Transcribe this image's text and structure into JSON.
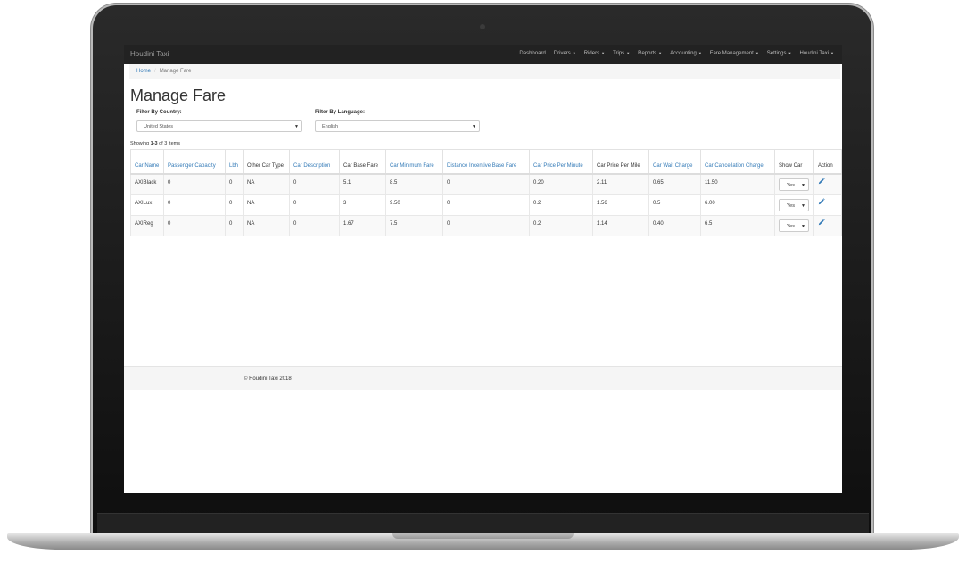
{
  "app": {
    "brand": "Houdini Taxi"
  },
  "nav": {
    "items": [
      {
        "label": "Dashboard",
        "dropdown": false
      },
      {
        "label": "Drivers",
        "dropdown": true
      },
      {
        "label": "Riders",
        "dropdown": true
      },
      {
        "label": "Trips",
        "dropdown": true
      },
      {
        "label": "Reports",
        "dropdown": true
      },
      {
        "label": "Accounting",
        "dropdown": true
      },
      {
        "label": "Fare Management",
        "dropdown": true
      },
      {
        "label": "Settings",
        "dropdown": true
      },
      {
        "label": "Houdini Taxi",
        "dropdown": true
      }
    ]
  },
  "breadcrumb": {
    "home": "Home",
    "separator": "/",
    "current": "Manage Fare"
  },
  "page": {
    "title": "Manage Fare"
  },
  "filters": {
    "country_label": "Filter By Country:",
    "country_value": "United States",
    "language_label": "Filter By Language:",
    "language_value": "English"
  },
  "showing": {
    "prefix": "Showing ",
    "range": "1-3",
    "suffix": " of 3 items"
  },
  "table": {
    "columns": [
      {
        "label": "Car Name",
        "link": true
      },
      {
        "label": "Passenger Capacity",
        "link": true
      },
      {
        "label": "Lbh",
        "link": true
      },
      {
        "label": "Other Car Type",
        "link": false
      },
      {
        "label": "Car Description",
        "link": true
      },
      {
        "label": "Car Base Fare",
        "link": false
      },
      {
        "label": "Car Minimum Fare",
        "link": true
      },
      {
        "label": "Distance Incentive Base Fare",
        "link": true
      },
      {
        "label": "Car Price Per Minute",
        "link": true
      },
      {
        "label": "Car Price Per Mile",
        "link": false
      },
      {
        "label": "Car Wait Charge",
        "link": true
      },
      {
        "label": "Car Cancellation Charge",
        "link": true
      },
      {
        "label": "Show Car",
        "link": false
      },
      {
        "label": "Action",
        "link": false
      }
    ],
    "rows": [
      {
        "cells": [
          "AXIBlack",
          "0",
          "0",
          "NA",
          "0",
          "5.1",
          "8.5",
          "0",
          "0.20",
          "2.11",
          "0.65",
          "11.50"
        ],
        "show_car": "Yes"
      },
      {
        "cells": [
          "AXILux",
          "0",
          "0",
          "NA",
          "0",
          "3",
          "9.50",
          "0",
          "0.2",
          "1.56",
          "0.5",
          "6.00"
        ],
        "show_car": "Yes"
      },
      {
        "cells": [
          "AXIReg",
          "0",
          "0",
          "NA",
          "0",
          "1.67",
          "7.5",
          "0",
          "0.2",
          "1.14",
          "0.40",
          "6.5"
        ],
        "show_car": "Yes"
      }
    ]
  },
  "footer": {
    "text": "© Houdini Taxi 2018"
  },
  "colors": {
    "navbar": "#222222",
    "link": "#337ab7",
    "edit_icon": "#337ab7"
  },
  "icons": {
    "row_action": "pencil-icon",
    "dropdown": "caret-down-icon"
  }
}
